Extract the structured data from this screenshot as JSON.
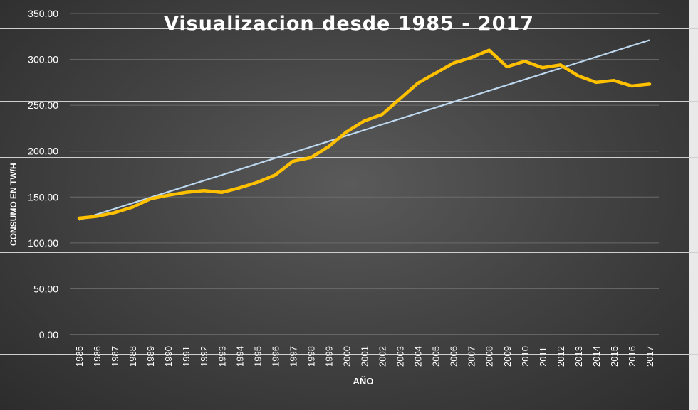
{
  "chart_data": {
    "type": "line",
    "title": "Visualizacion desde 1985 - 2017",
    "xlabel": "AÑO",
    "ylabel": "CONSUMO EN TW/H",
    "ylim": [
      0,
      350
    ],
    "yticks": [
      "0,00",
      "50,00",
      "100,00",
      "150,00",
      "200,00",
      "250,00",
      "300,00",
      "350,00"
    ],
    "x": [
      "1985",
      "1986",
      "1987",
      "1988",
      "1989",
      "1990",
      "1991",
      "1992",
      "1993",
      "1994",
      "1995",
      "1996",
      "1997",
      "1998",
      "1999",
      "2000",
      "2001",
      "2002",
      "2003",
      "2004",
      "2005",
      "2006",
      "2007",
      "2008",
      "2009",
      "2010",
      "2011",
      "2012",
      "2013",
      "2014",
      "2015",
      "2016",
      "2017"
    ],
    "series": [
      {
        "kind": "data",
        "color": "#FFC000",
        "values": [
          127,
          129,
          133,
          139,
          148,
          152,
          155,
          157,
          155,
          160,
          166,
          174,
          189,
          193,
          205,
          221,
          233,
          240,
          257,
          274,
          285,
          296,
          302,
          310,
          292,
          298,
          291,
          294,
          282,
          275,
          277,
          271,
          273
        ]
      },
      {
        "kind": "trendline",
        "color": "#BDD7EE",
        "values": [
          125,
          131.1,
          137.3,
          143.4,
          149.5,
          155.6,
          161.8,
          167.9,
          174.0,
          180.1,
          186.3,
          192.4,
          198.5,
          204.6,
          210.8,
          216.9,
          223.0,
          229.1,
          235.3,
          241.4,
          247.5,
          253.6,
          259.8,
          265.9,
          272.0,
          278.1,
          284.3,
          290.4,
          296.5,
          302.6,
          308.8,
          314.9,
          321
        ]
      }
    ],
    "grid": true,
    "legend": "none"
  }
}
